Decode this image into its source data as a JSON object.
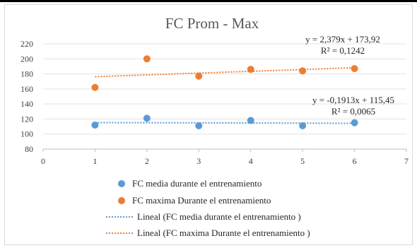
{
  "chart_data": {
    "type": "scatter",
    "title": "FC Prom - Max",
    "xlabel": "",
    "ylabel": "",
    "xlim": [
      0,
      7
    ],
    "ylim": [
      80,
      220
    ],
    "x_ticks": [
      "0",
      "1",
      "2",
      "3",
      "4",
      "5",
      "6",
      "7"
    ],
    "y_ticks": [
      "80",
      "100",
      "120",
      "140",
      "160",
      "180",
      "200",
      "220"
    ],
    "grid": "horizontal",
    "legend_position": "bottom",
    "series": [
      {
        "name": "FC media durante el entrenamiento",
        "color": "#5b9bd5",
        "x": [
          1,
          2,
          3,
          4,
          5,
          6
        ],
        "y": [
          112,
          121,
          111,
          118,
          111,
          115
        ]
      },
      {
        "name": "FC maxima Durante el entrenamiento",
        "color": "#ed7d31",
        "x": [
          1,
          2,
          3,
          4,
          5,
          6
        ],
        "y": [
          162,
          200,
          177,
          186,
          184,
          187
        ]
      }
    ],
    "trendlines": [
      {
        "name": "Lineal (FC media durante el entrenamiento )",
        "color": "#5b9bd5",
        "slope": -0.1913,
        "intercept": 115.45,
        "equation": "y = -0,1913x + 115,45",
        "r2": "R² = 0,0065"
      },
      {
        "name": "Lineal (FC maxima Durante el entrenamiento )",
        "color": "#ed7d31",
        "slope": 2.379,
        "intercept": 173.92,
        "equation": "y = 2,379x + 173,92",
        "r2": "R² = 0,1242"
      }
    ]
  }
}
